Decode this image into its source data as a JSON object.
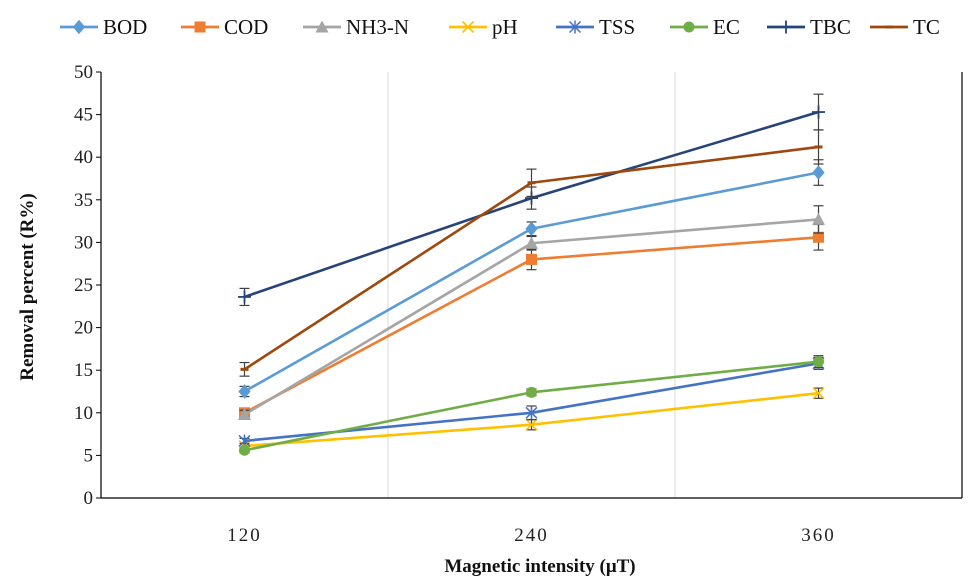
{
  "chart_data": {
    "type": "line",
    "x_categories": [
      "120",
      "240",
      "360"
    ],
    "xlabel": "Magnetic intensity (μT)",
    "ylabel": "Removal percent (R%)",
    "ylim": [
      0,
      50
    ],
    "y_ticks": [
      0,
      5,
      10,
      15,
      20,
      25,
      30,
      35,
      40,
      45,
      50
    ],
    "vertical_gridlines_between_categories": true,
    "legend_position": "top",
    "series": [
      {
        "name": "BOD",
        "color": "#5b9bd5",
        "marker": "diamond",
        "values": [
          12.5,
          31.6,
          38.2
        ],
        "errors": [
          0.6,
          0.8,
          1.5
        ]
      },
      {
        "name": "COD",
        "color": "#ed7d31",
        "marker": "square",
        "values": [
          10.0,
          28.0,
          30.6
        ],
        "errors": [
          0.5,
          1.2,
          1.5
        ]
      },
      {
        "name": "NH3-N",
        "color": "#a5a5a5",
        "marker": "triangle",
        "values": [
          9.8,
          29.9,
          32.7
        ],
        "errors": [
          0.5,
          0.8,
          1.6
        ]
      },
      {
        "name": "pH",
        "color": "#ffc000",
        "marker": "x",
        "values": [
          6.1,
          8.6,
          12.3
        ],
        "errors": [
          0.3,
          0.6,
          0.6
        ]
      },
      {
        "name": "TSS",
        "color": "#4472c4",
        "marker": "star",
        "values": [
          6.7,
          10.0,
          15.8
        ],
        "errors": [
          0.3,
          0.8,
          0.7
        ]
      },
      {
        "name": "EC",
        "color": "#70ad47",
        "marker": "circle",
        "values": [
          5.6,
          12.4,
          16.0
        ],
        "errors": [
          0.3,
          0.4,
          0.7
        ]
      },
      {
        "name": "TBC",
        "color": "#264478",
        "marker": "plus",
        "values": [
          23.6,
          35.2,
          45.3
        ],
        "errors": [
          1.0,
          1.3,
          2.1
        ]
      },
      {
        "name": "TC",
        "color": "#9e480e",
        "marker": "dash",
        "values": [
          15.1,
          37.0,
          41.2
        ],
        "errors": [
          0.8,
          1.6,
          2.0
        ]
      }
    ]
  }
}
